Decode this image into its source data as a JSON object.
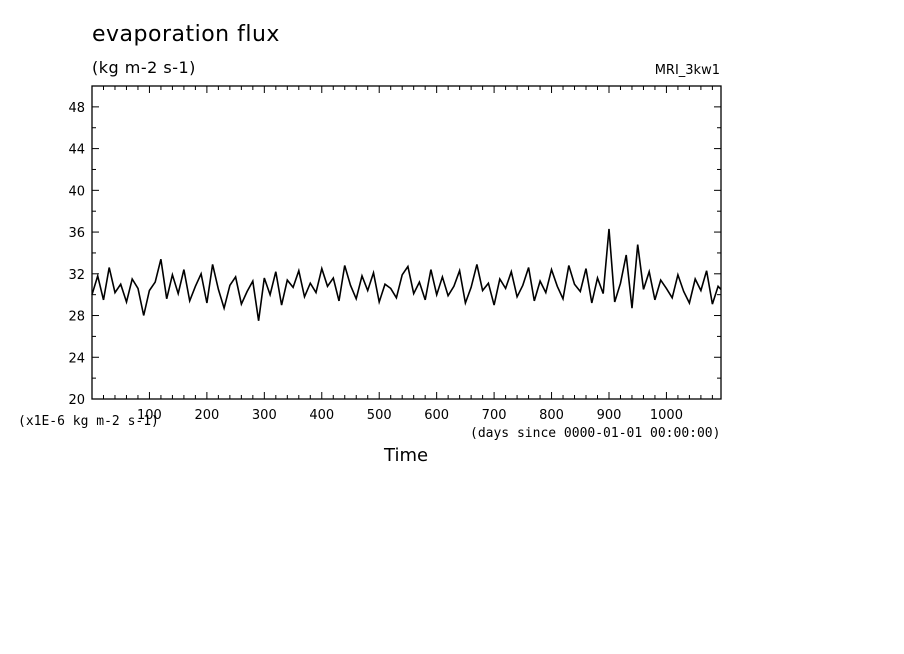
{
  "chart_data": {
    "type": "line",
    "title": "evaporation flux",
    "ylabel": "(kg m-2 s-1)",
    "model_label": "MRI_3kw1",
    "scale_note": "(x1E-6 kg m-2 s-1)",
    "xunits": "(days since 0000-01-01 00:00:00)",
    "xlabel": "Time",
    "xlim": [
      0,
      1095
    ],
    "ylim": [
      20,
      50
    ],
    "xticks": [
      100,
      200,
      300,
      400,
      500,
      600,
      700,
      800,
      900,
      1000
    ],
    "yticks": [
      20,
      24,
      28,
      32,
      36,
      40,
      44,
      48
    ],
    "line_color": "#000000",
    "series": [
      {
        "x": [
          0,
          10,
          20,
          30,
          40,
          50,
          60,
          70,
          80,
          90,
          100,
          110,
          120,
          130,
          140,
          150,
          160,
          170,
          180,
          190,
          200,
          210,
          220,
          230,
          240,
          250,
          260,
          270,
          280,
          290,
          300,
          310,
          320,
          330,
          340,
          350,
          360,
          370,
          380,
          390,
          400,
          410,
          420,
          430,
          440,
          450,
          460,
          470,
          480,
          490,
          500,
          510,
          520,
          530,
          540,
          550,
          560,
          570,
          580,
          590,
          600,
          610,
          620,
          630,
          640,
          650,
          660,
          670,
          680,
          690,
          700,
          710,
          720,
          730,
          740,
          750,
          760,
          770,
          780,
          790,
          800,
          810,
          820,
          830,
          840,
          850,
          860,
          870,
          880,
          890,
          900,
          910,
          920,
          930,
          940,
          950,
          960,
          970,
          980,
          990,
          1000,
          1010,
          1020,
          1030,
          1040,
          1050,
          1060,
          1070,
          1080,
          1090,
          1095
        ],
        "values": [
          30.0,
          31.8,
          29.5,
          32.6,
          30.2,
          31.0,
          29.3,
          31.5,
          30.6,
          28.0,
          30.4,
          31.2,
          33.4,
          29.6,
          31.9,
          30.1,
          32.4,
          29.4,
          30.8,
          32.0,
          29.2,
          32.9,
          30.5,
          28.7,
          30.9,
          31.7,
          29.1,
          30.3,
          31.3,
          27.5,
          31.6,
          30.0,
          32.2,
          29.0,
          31.4,
          30.7,
          32.3,
          29.8,
          31.1,
          30.2,
          32.5,
          30.8,
          31.6,
          29.4,
          32.8,
          30.9,
          29.6,
          31.8,
          30.4,
          32.1,
          29.3,
          31.0,
          30.6,
          29.7,
          31.9,
          32.7,
          30.1,
          31.2,
          29.5,
          32.4,
          30.0,
          31.7,
          29.9,
          30.8,
          32.3,
          29.2,
          30.7,
          32.9,
          30.4,
          31.1,
          29.0,
          31.5,
          30.6,
          32.2,
          29.8,
          30.9,
          32.6,
          29.4,
          31.3,
          30.2,
          32.4,
          30.8,
          29.6,
          32.8,
          31.0,
          30.3,
          32.5,
          29.2,
          31.6,
          30.1,
          36.3,
          29.3,
          31.1,
          33.8,
          28.7,
          34.8,
          30.5,
          32.2,
          29.5,
          31.4,
          30.6,
          29.7,
          31.9,
          30.3,
          29.2,
          31.5,
          30.4,
          32.3,
          29.1,
          30.8,
          30.5
        ]
      }
    ]
  }
}
